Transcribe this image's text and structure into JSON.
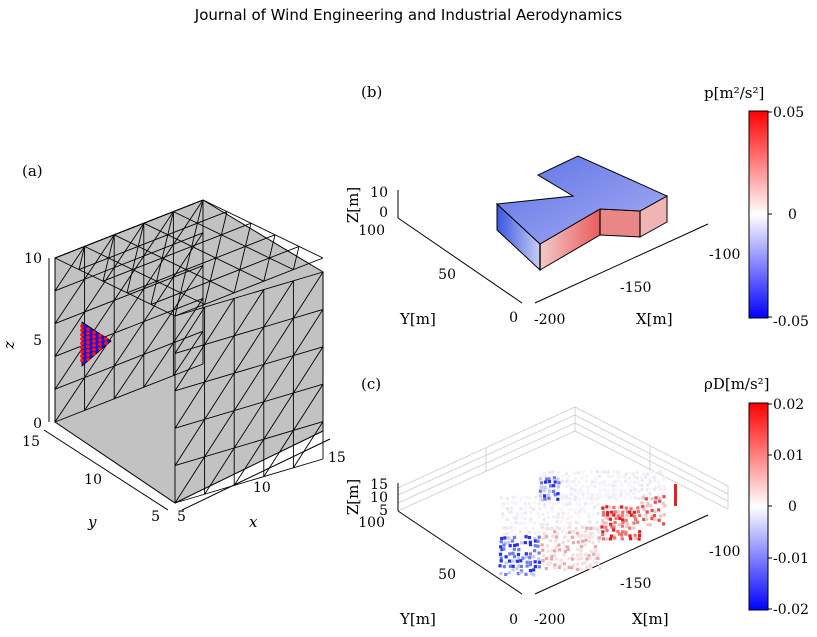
{
  "header": "Journal of Wind Engineering and Industrial Aerodynamics",
  "panels": {
    "a": {
      "label": "(a)",
      "xlabel": "x",
      "ylabel": "y",
      "zlabel": "z",
      "xticks": [
        "5",
        "10",
        "15"
      ],
      "yticks": [
        "15",
        "10",
        "5"
      ],
      "zticks": [
        "10",
        "5",
        "0"
      ]
    },
    "b": {
      "label": "(b)",
      "xlabel": "X[m]",
      "ylabel": "Y[m]",
      "zlabel": "Z[m]",
      "xticks": [
        "-100",
        "-150",
        "-200"
      ],
      "yticks": [
        "100",
        "50",
        "0"
      ],
      "zticks": [
        "10",
        "0"
      ],
      "colorbar": {
        "title": "p[m²/s²]",
        "ticks": [
          "0.05",
          "0",
          "-0.05"
        ],
        "range": [
          -0.05,
          0.05
        ]
      }
    },
    "c": {
      "label": "(c)",
      "xlabel": "X[m]",
      "ylabel": "Y[m]",
      "zlabel": "Z[m]",
      "xticks": [
        "-100",
        "-150",
        "-200"
      ],
      "yticks": [
        "100",
        "50",
        "0"
      ],
      "zticks": [
        "15",
        "10",
        "5"
      ],
      "colorbar": {
        "title": "ρD[m/s²]",
        "ticks": [
          "0.02",
          "0.01",
          "0",
          "-0.01",
          "-0.02"
        ],
        "range": [
          -0.02,
          0.02
        ]
      }
    }
  },
  "colors": {
    "negative": "#0000ff",
    "zero": "#ffffff",
    "positive": "#ff0000",
    "cube_face": "#c2c2c2"
  }
}
